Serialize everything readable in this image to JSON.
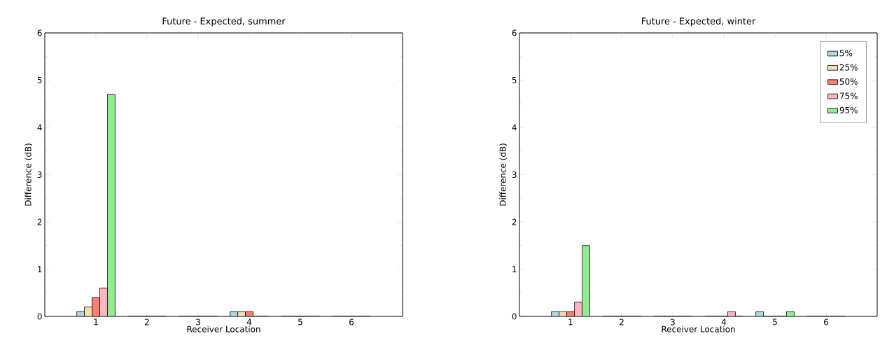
{
  "chart_data": [
    {
      "type": "bar",
      "title": "Future - Expected, summer",
      "xlabel": "Receiver Location",
      "ylabel": "Difference (dB)",
      "x": [
        1,
        2,
        3,
        4,
        5,
        6
      ],
      "xlim": [
        0,
        7
      ],
      "xticks": [
        1,
        2,
        3,
        4,
        5,
        6
      ],
      "ylim": [
        0,
        6
      ],
      "yticks": [
        0,
        1,
        2,
        3,
        4,
        5,
        6
      ],
      "legend": false,
      "series": [
        {
          "color": "#add8e6",
          "values": [
            0.1,
            0,
            0,
            0.1,
            0,
            0
          ]
        },
        {
          "color": "#f5deb3",
          "values": [
            0.2,
            0,
            0,
            0.1,
            0,
            0
          ]
        },
        {
          "color": "#fa8072",
          "values": [
            0.4,
            0,
            0,
            0.1,
            0,
            0
          ]
        },
        {
          "color": "#ffb6c1",
          "values": [
            0.6,
            0,
            0,
            0,
            0,
            0
          ]
        },
        {
          "color": "#90ee90",
          "values": [
            4.7,
            0,
            0,
            0,
            0,
            0
          ]
        }
      ]
    },
    {
      "type": "bar",
      "title": "Future - Expected, winter",
      "xlabel": "Receiver Location",
      "ylabel": "Difference (dB)",
      "x": [
        1,
        2,
        3,
        4,
        5,
        6
      ],
      "xlim": [
        0,
        7
      ],
      "xticks": [
        1,
        2,
        3,
        4,
        5,
        6
      ],
      "ylim": [
        0,
        6
      ],
      "yticks": [
        0,
        1,
        2,
        3,
        4,
        5,
        6
      ],
      "legend": "top right",
      "series": [
        {
          "name": "5%",
          "color": "#add8e6",
          "values": [
            0.1,
            0,
            0,
            0,
            0.1,
            0
          ]
        },
        {
          "name": "25%",
          "color": "#f5deb3",
          "values": [
            0.1,
            0,
            0,
            0,
            0,
            0
          ]
        },
        {
          "name": "50%",
          "color": "#fa8072",
          "values": [
            0.1,
            0,
            0,
            0,
            0,
            0
          ]
        },
        {
          "name": "75%",
          "color": "#ffb6c1",
          "values": [
            0.3,
            0,
            0,
            0.1,
            0,
            0
          ]
        },
        {
          "name": "95%",
          "color": "#90ee90",
          "values": [
            1.5,
            0,
            0,
            0,
            0.1,
            0
          ]
        }
      ]
    }
  ]
}
